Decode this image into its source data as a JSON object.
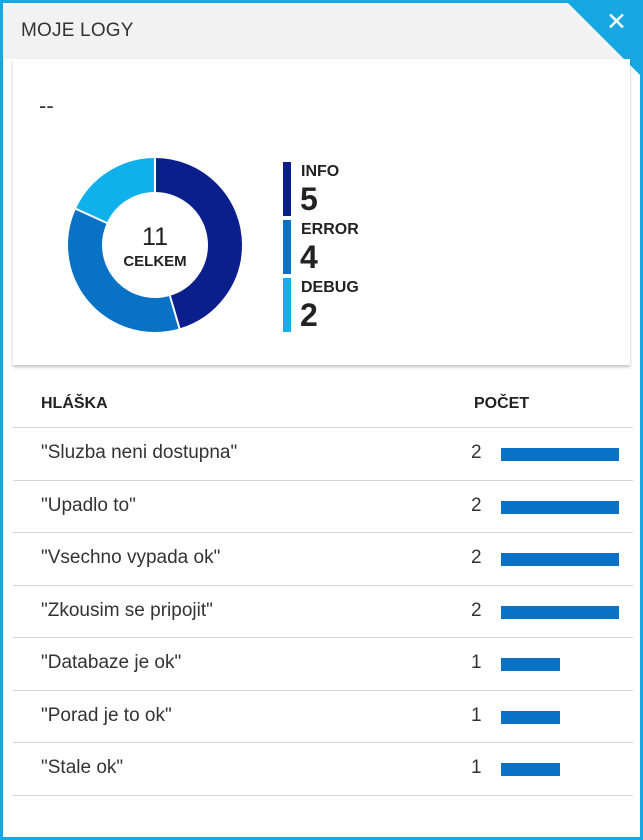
{
  "header": {
    "title": "MOJE LOGY",
    "close_icon": "close-icon"
  },
  "summary": {
    "subtitle": "--",
    "total": "11",
    "total_caption": "CELKEM",
    "levels": [
      {
        "label": "INFO",
        "count": 5,
        "color": "#0a1e8c"
      },
      {
        "label": "ERROR",
        "count": 4,
        "color": "#0a72c4"
      },
      {
        "label": "DEBUG",
        "count": 2,
        "color": "#10b0ea"
      }
    ]
  },
  "table": {
    "headers": {
      "message": "HLÁŠKA",
      "count": "POČET"
    },
    "bar_color": "#0a72c4",
    "max_count": 2,
    "rows": [
      {
        "message": "\"Sluzba neni dostupna\"",
        "count": "2"
      },
      {
        "message": "\"Upadlo to\"",
        "count": "2"
      },
      {
        "message": "\"Vsechno vypada ok\"",
        "count": "2"
      },
      {
        "message": "\"Zkousim se pripojit\"",
        "count": "2"
      },
      {
        "message": "\"Databaze je ok\"",
        "count": "1"
      },
      {
        "message": "\"Porad je to ok\"",
        "count": "1"
      },
      {
        "message": "\"Stale ok\"",
        "count": "1"
      }
    ]
  }
}
